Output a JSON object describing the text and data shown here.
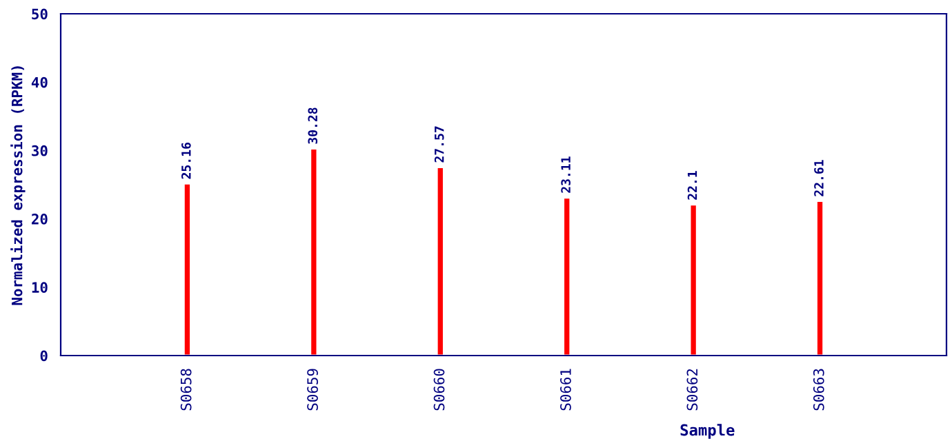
{
  "chart_data": {
    "type": "bar",
    "xlabel": "Sample",
    "ylabel": "Normalized expression (RPKM)",
    "categories": [
      "S0658",
      "S0659",
      "S0660",
      "S0661",
      "S0662",
      "S0663"
    ],
    "values": [
      25.16,
      30.28,
      27.57,
      23.11,
      22.1,
      22.61
    ],
    "color": "#ff0000",
    "ylim": [
      0,
      50
    ],
    "yticks": [
      0,
      10,
      20,
      30,
      40,
      50
    ],
    "data_labels": true,
    "grid": false
  }
}
